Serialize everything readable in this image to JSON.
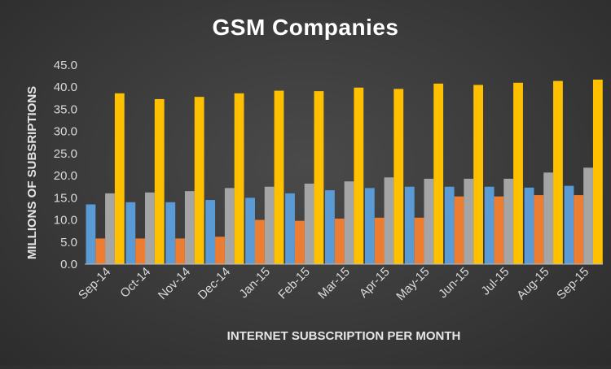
{
  "chart_data": {
    "type": "bar",
    "title": "GSM Companies",
    "xlabel": "INTERNET SUBSCRIPTION PER MONTH",
    "ylabel": "MILLIONS OF SUBSRIPTIONS",
    "ylim": [
      0,
      45
    ],
    "yticks": [
      "0.0",
      "5.0",
      "10.0",
      "15.0",
      "20.0",
      "25.0",
      "30.0",
      "35.0",
      "40.0",
      "45.0"
    ],
    "grid": false,
    "categories": [
      "Sep-14",
      "Oct-14",
      "Nov-14",
      "Dec-14",
      "Jan-15",
      "Feb-15",
      "Mar-15",
      "Apr-15",
      "May-15",
      "Jun-15",
      "Jul-15",
      "Aug-15",
      "Sep-15"
    ],
    "series": [
      {
        "color": "#5b9bd5",
        "values": [
          13.5,
          14.0,
          14.0,
          14.5,
          15.0,
          16.0,
          16.7,
          17.2,
          17.5,
          17.5,
          17.5,
          17.3,
          17.7
        ]
      },
      {
        "color": "#ed7d31",
        "values": [
          5.8,
          5.8,
          5.8,
          6.2,
          10.0,
          9.8,
          10.3,
          10.5,
          10.5,
          15.3,
          15.3,
          15.6,
          15.6
        ]
      },
      {
        "color": "#a5a5a5",
        "values": [
          16.0,
          16.2,
          16.5,
          17.2,
          17.5,
          18.2,
          18.7,
          19.6,
          19.3,
          19.3,
          19.3,
          20.7,
          21.8
        ]
      },
      {
        "color": "#ffc000",
        "values": [
          38.6,
          37.3,
          37.8,
          38.6,
          39.2,
          39.1,
          39.9,
          39.6,
          40.8,
          40.5,
          41.0,
          41.4,
          41.7
        ]
      }
    ]
  }
}
